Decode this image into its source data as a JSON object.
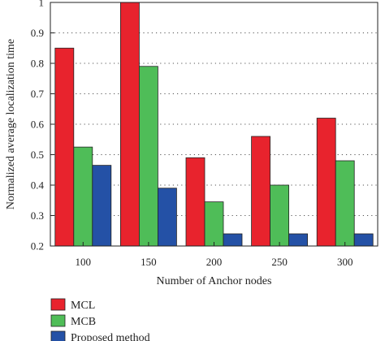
{
  "chart_data": {
    "type": "bar",
    "xlabel": "Number of Anchor nodes",
    "ylabel": "Normalized average localization time",
    "categories": [
      "100",
      "150",
      "200",
      "250",
      "300"
    ],
    "ylim": [
      0.2,
      1.0
    ],
    "yticks": [
      "0.2",
      "0.3",
      "0.4",
      "0.5",
      "0.6",
      "0.7",
      "0.8",
      "0.9",
      "1"
    ],
    "grid": "horizontal dotted",
    "legend_position": "bottom-left",
    "series": [
      {
        "name": "MCL",
        "color": "#e8232d",
        "values": [
          0.85,
          1.0,
          0.49,
          0.56,
          0.62
        ]
      },
      {
        "name": "MCB",
        "color": "#4fbd58",
        "values": [
          0.525,
          0.79,
          0.345,
          0.4,
          0.48
        ]
      },
      {
        "name": "Proposed method",
        "color": "#2451a6",
        "values": [
          0.465,
          0.39,
          0.24,
          0.24,
          0.24
        ]
      }
    ]
  }
}
